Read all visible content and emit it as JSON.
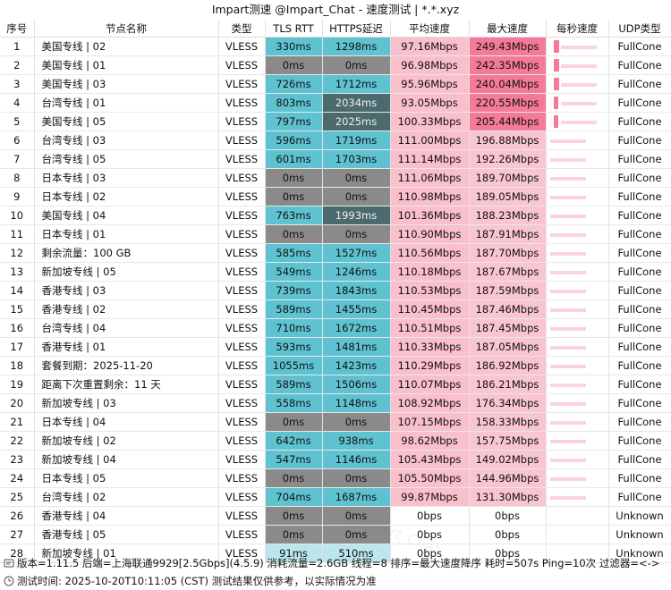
{
  "title": "Impart测速 @Impart_Chat - 速度测试 | *.*.xyz",
  "headers": [
    "序号",
    "节点名称",
    "类型",
    "TLS RTT",
    "HTTPS延迟",
    "平均速度",
    "最大速度",
    "每秒速度",
    "UDP类型"
  ],
  "rows": [
    {
      "idx": "1",
      "name": "美国专线 | 02",
      "type": "VLESS",
      "tls": "330ms",
      "https": "1298ms",
      "avg": "97.16Mbps",
      "max": "249.43Mbps",
      "udp": "FullCone",
      "bar": 1.0
    },
    {
      "idx": "2",
      "name": "美国专线 | 01",
      "type": "VLESS",
      "tls": "0ms",
      "https": "0ms",
      "avg": "96.98Mbps",
      "max": "242.35Mbps",
      "udp": "FullCone",
      "bar": 0.97
    },
    {
      "idx": "3",
      "name": "美国专线 | 03",
      "type": "VLESS",
      "tls": "726ms",
      "https": "1712ms",
      "avg": "95.96Mbps",
      "max": "240.04Mbps",
      "udp": "FullCone",
      "bar": 0.96
    },
    {
      "idx": "4",
      "name": "台湾专线 | 01",
      "type": "VLESS",
      "tls": "803ms",
      "https": "2034ms",
      "avg": "93.05Mbps",
      "max": "220.55Mbps",
      "udp": "FullCone",
      "bar": 0.88
    },
    {
      "idx": "5",
      "name": "美国专线 | 05",
      "type": "VLESS",
      "tls": "797ms",
      "https": "2025ms",
      "avg": "100.33Mbps",
      "max": "205.44Mbps",
      "udp": "FullCone",
      "bar": 0.82
    },
    {
      "idx": "6",
      "name": "台湾专线 | 03",
      "type": "VLESS",
      "tls": "596ms",
      "https": "1719ms",
      "avg": "111.00Mbps",
      "max": "196.88Mbps",
      "udp": "FullCone",
      "bar": 0.0
    },
    {
      "idx": "7",
      "name": "台湾专线 | 05",
      "type": "VLESS",
      "tls": "601ms",
      "https": "1703ms",
      "avg": "111.14Mbps",
      "max": "192.26Mbps",
      "udp": "FullCone",
      "bar": 0.0
    },
    {
      "idx": "8",
      "name": "日本专线 | 03",
      "type": "VLESS",
      "tls": "0ms",
      "https": "0ms",
      "avg": "111.06Mbps",
      "max": "189.70Mbps",
      "udp": "FullCone",
      "bar": 0.0
    },
    {
      "idx": "9",
      "name": "日本专线 | 02",
      "type": "VLESS",
      "tls": "0ms",
      "https": "0ms",
      "avg": "110.98Mbps",
      "max": "189.05Mbps",
      "udp": "FullCone",
      "bar": 0.0
    },
    {
      "idx": "10",
      "name": "美国专线 | 04",
      "type": "VLESS",
      "tls": "763ms",
      "https": "1993ms",
      "avg": "101.36Mbps",
      "max": "188.23Mbps",
      "udp": "FullCone",
      "bar": 0.0
    },
    {
      "idx": "11",
      "name": "日本专线 | 01",
      "type": "VLESS",
      "tls": "0ms",
      "https": "0ms",
      "avg": "110.90Mbps",
      "max": "187.91Mbps",
      "udp": "FullCone",
      "bar": 0.0
    },
    {
      "idx": "12",
      "name": "剩余流量：100 GB",
      "type": "VLESS",
      "tls": "585ms",
      "https": "1527ms",
      "avg": "110.56Mbps",
      "max": "187.70Mbps",
      "udp": "FullCone",
      "bar": 0.0
    },
    {
      "idx": "13",
      "name": "新加坡专线 | 05",
      "type": "VLESS",
      "tls": "549ms",
      "https": "1246ms",
      "avg": "110.18Mbps",
      "max": "187.67Mbps",
      "udp": "FullCone",
      "bar": 0.0
    },
    {
      "idx": "14",
      "name": "香港专线 | 03",
      "type": "VLESS",
      "tls": "739ms",
      "https": "1843ms",
      "avg": "110.53Mbps",
      "max": "187.59Mbps",
      "udp": "FullCone",
      "bar": 0.0
    },
    {
      "idx": "15",
      "name": "香港专线 | 02",
      "type": "VLESS",
      "tls": "589ms",
      "https": "1455ms",
      "avg": "110.45Mbps",
      "max": "187.46Mbps",
      "udp": "FullCone",
      "bar": 0.0
    },
    {
      "idx": "16",
      "name": "台湾专线 | 04",
      "type": "VLESS",
      "tls": "710ms",
      "https": "1672ms",
      "avg": "110.51Mbps",
      "max": "187.45Mbps",
      "udp": "FullCone",
      "bar": 0.0
    },
    {
      "idx": "17",
      "name": "香港专线 | 01",
      "type": "VLESS",
      "tls": "593ms",
      "https": "1481ms",
      "avg": "110.33Mbps",
      "max": "187.05Mbps",
      "udp": "FullCone",
      "bar": 0.0
    },
    {
      "idx": "18",
      "name": "套餐到期：2025-11-20",
      "type": "VLESS",
      "tls": "1055ms",
      "https": "1423ms",
      "avg": "110.29Mbps",
      "max": "186.92Mbps",
      "udp": "FullCone",
      "bar": 0.0
    },
    {
      "idx": "19",
      "name": "距离下次重置剩余：11 天",
      "type": "VLESS",
      "tls": "589ms",
      "https": "1506ms",
      "avg": "110.07Mbps",
      "max": "186.21Mbps",
      "udp": "FullCone",
      "bar": 0.0
    },
    {
      "idx": "20",
      "name": "新加坡专线 | 03",
      "type": "VLESS",
      "tls": "558ms",
      "https": "1148ms",
      "avg": "108.92Mbps",
      "max": "176.34Mbps",
      "udp": "FullCone",
      "bar": 0.0
    },
    {
      "idx": "21",
      "name": "日本专线 | 04",
      "type": "VLESS",
      "tls": "0ms",
      "https": "0ms",
      "avg": "107.15Mbps",
      "max": "158.33Mbps",
      "udp": "FullCone",
      "bar": 0.0
    },
    {
      "idx": "22",
      "name": "新加坡专线 | 02",
      "type": "VLESS",
      "tls": "642ms",
      "https": "938ms",
      "avg": "98.62Mbps",
      "max": "157.75Mbps",
      "udp": "FullCone",
      "bar": 0.0
    },
    {
      "idx": "23",
      "name": "新加坡专线 | 04",
      "type": "VLESS",
      "tls": "547ms",
      "https": "1146ms",
      "avg": "105.43Mbps",
      "max": "149.02Mbps",
      "udp": "FullCone",
      "bar": 0.0
    },
    {
      "idx": "24",
      "name": "日本专线 | 05",
      "type": "VLESS",
      "tls": "0ms",
      "https": "0ms",
      "avg": "105.50Mbps",
      "max": "144.96Mbps",
      "udp": "FullCone",
      "bar": 0.0
    },
    {
      "idx": "25",
      "name": "台湾专线 | 02",
      "type": "VLESS",
      "tls": "704ms",
      "https": "1687ms",
      "avg": "99.87Mbps",
      "max": "131.30Mbps",
      "udp": "FullCone",
      "bar": 0.0
    },
    {
      "idx": "26",
      "name": "香港专线 | 04",
      "type": "VLESS",
      "tls": "0ms",
      "https": "0ms",
      "avg": "0bps",
      "max": "0bps",
      "udp": "Unknown",
      "bar": 0.0
    },
    {
      "idx": "27",
      "name": "香港专线 | 05",
      "type": "VLESS",
      "tls": "0ms",
      "https": "0ms",
      "avg": "0bps",
      "max": "0bps",
      "udp": "Unknown",
      "bar": 0.0
    },
    {
      "idx": "28",
      "name": "新加坡专线 | 01",
      "type": "VLESS",
      "tls": "91ms",
      "https": "510ms",
      "avg": "0bps",
      "max": "0bps",
      "udp": "Unknown",
      "bar": 0.0
    }
  ],
  "footer": {
    "line1": "版本=1.11.5  后端=上海联通9929[2.5Gbps](4.5.9)  消耗流量=2.6GB  线程=8  排序=最大速度降序  耗时=507s  Ping=10次  过滤器=<->",
    "line2": "测试时间: 2025-10-20T10:11:05 (CST)  测试结果仅供参考，以实际情况为准",
    "line1_icon": "info-icon",
    "line2_icon": "clock-icon"
  },
  "watermark": "@Impart_Chat",
  "colors": {
    "tls_good": "#5fc2d1",
    "tls_light": "#bce6ed",
    "https_dark": "#4a6a6d",
    "zero_gray": "#8a8a8a",
    "avg_bg": "#f9bfcb",
    "max_top": "#f47a97",
    "max_bg": "#f9c5d0",
    "speed_bar": "#f47a97"
  }
}
